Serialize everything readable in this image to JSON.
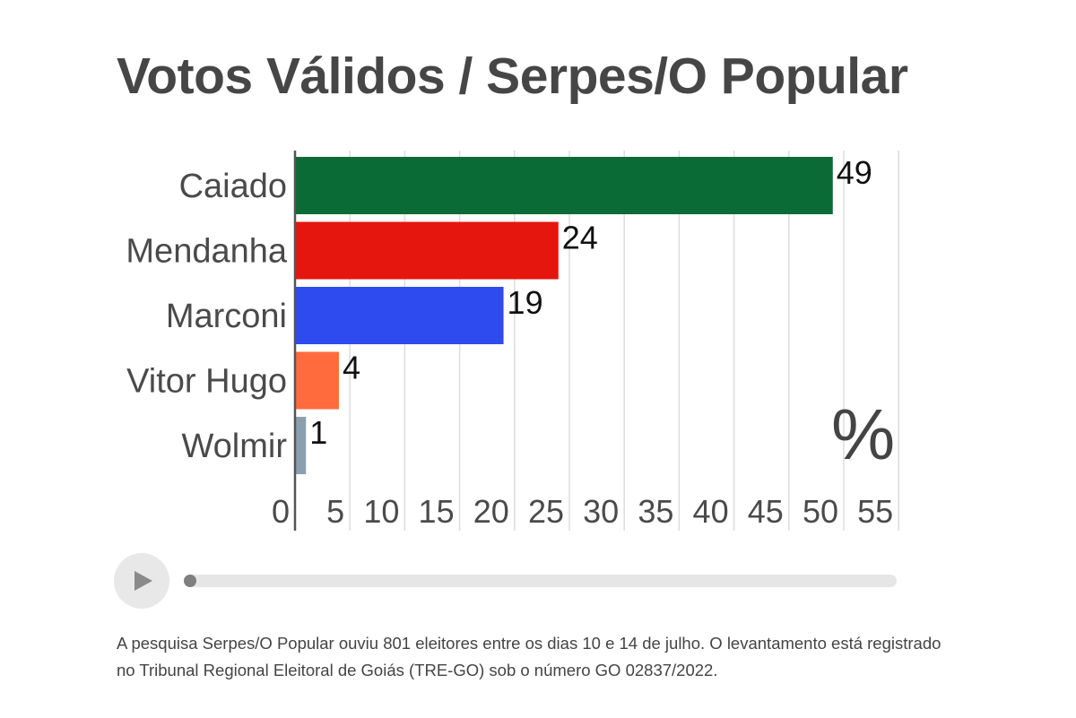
{
  "chart_data": {
    "type": "bar",
    "orientation": "horizontal",
    "title": "Votos Válidos / Serpes/O Popular",
    "categories": [
      "Caiado",
      "Mendanha",
      "Marconi",
      "Vitor Hugo",
      "Wolmir"
    ],
    "values": [
      49,
      24,
      19,
      4,
      1
    ],
    "bar_colors": [
      "#0b6b36",
      "#e5160e",
      "#2e4bef",
      "#ff6b3d",
      "#8c9fac"
    ],
    "x_ticks": [
      "0",
      "5",
      "10",
      "15",
      "20",
      "25",
      "30",
      "35",
      "40",
      "45",
      "50",
      "55"
    ],
    "xlim": [
      0,
      55
    ],
    "unit": "%",
    "grid": true
  },
  "player": {
    "progress": 0
  },
  "footnote": "A pesquisa Serpes/O Popular ouviu 801 eleitores entre os dias 10 e 14 de julho. O levantamento está registrado no Tribunal Regional Eleitoral de Goiás (TRE-GO) sob o número GO 02837/2022."
}
